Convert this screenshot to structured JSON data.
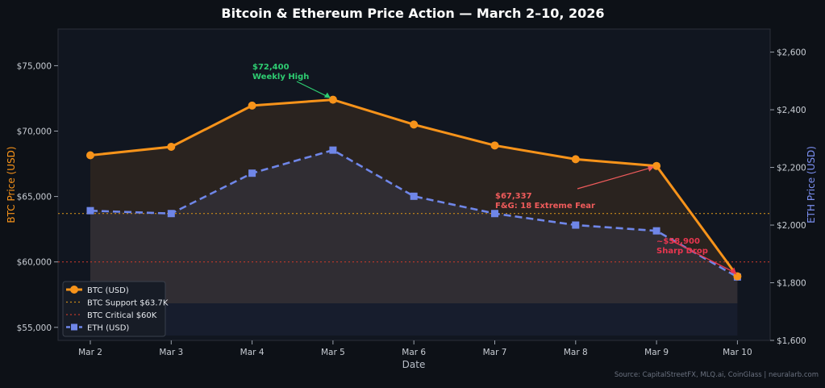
{
  "chart_data": {
    "type": "line",
    "title": "Bitcoin & Ethereum Price Action — March 2–10, 2026",
    "xlabel": "Date",
    "ylabel_left": "BTC Price (USD)",
    "ylabel_right": "ETH Price (USD)",
    "categories": [
      "Mar 2",
      "Mar 3",
      "Mar 4",
      "Mar 5",
      "Mar 6",
      "Mar 7",
      "Mar 8",
      "Mar 9",
      "Mar 10"
    ],
    "ylim_left": [
      54000,
      77800
    ],
    "ylim_right": [
      1600,
      2680
    ],
    "yticks_left": [
      {
        "value": 55000,
        "label": "$55,000"
      },
      {
        "value": 60000,
        "label": "$60,000"
      },
      {
        "value": 65000,
        "label": "$65,000"
      },
      {
        "value": 70000,
        "label": "$70,000"
      },
      {
        "value": 75000,
        "label": "$75,000"
      }
    ],
    "yticks_right": [
      {
        "value": 1600,
        "label": "$1,600"
      },
      {
        "value": 1800,
        "label": "$1,800"
      },
      {
        "value": 2000,
        "label": "$2,000"
      },
      {
        "value": 2200,
        "label": "$2,200"
      },
      {
        "value": 2400,
        "label": "$2,400"
      },
      {
        "value": 2600,
        "label": "$2,600"
      }
    ],
    "series": [
      {
        "name": "BTC (USD)",
        "axis": "left",
        "color": "#f7931a",
        "values": [
          68150,
          68800,
          71950,
          72400,
          70500,
          68900,
          67850,
          67337,
          58900
        ]
      },
      {
        "name": "ETH (USD)",
        "axis": "right",
        "color": "#6f86e8",
        "values": [
          2050,
          2040,
          2180,
          2260,
          2100,
          2040,
          2000,
          1980,
          1820
        ]
      }
    ],
    "reference_lines": [
      {
        "name": "BTC Support $63.7K",
        "value": 63700,
        "color": "#c98a1a"
      },
      {
        "name": "BTC Critical $60K",
        "value": 60000,
        "color": "#c0392b"
      }
    ],
    "annotations": [
      {
        "line1": "$72,400",
        "line2": "Weekly High",
        "color": "#2ecc71",
        "target_index": 3
      },
      {
        "line1": "$67,337",
        "line2": "F&G: 18 Extreme Fear",
        "color": "#ef5b5b",
        "target_index": 7
      },
      {
        "line1": "~$58,900",
        "line2": "Sharp Drop",
        "color": "#e8364f",
        "target_index": 8
      }
    ],
    "legend_position": "bottom-left",
    "grid": false,
    "source": "Source: CapitalStreetFX, MLQ.ai, CoinGlass | neuralarb.com"
  }
}
